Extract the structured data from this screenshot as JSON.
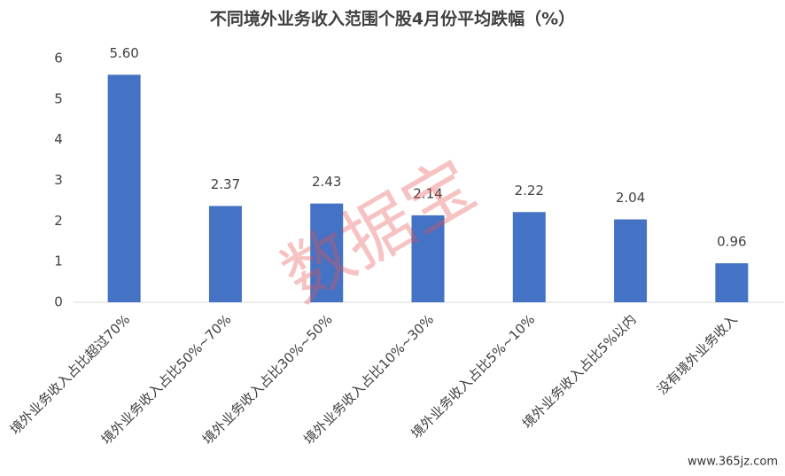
{
  "chart_data": {
    "type": "bar",
    "title": "不同境外业务收入范围个股4月份平均跌幅（%）",
    "categories": [
      "境外业务收入占比超过70%",
      "境外业务收入占比50%~70%",
      "境外业务收入占比30%~50%",
      "境外业务收入占比10%~30%",
      "境外业务收入占比5%~10%",
      "境外业务收入占比5%以内",
      "没有境外业务收入"
    ],
    "values": [
      5.6,
      2.37,
      2.43,
      2.14,
      2.22,
      2.04,
      0.96
    ],
    "value_labels": [
      "5.60",
      "2.37",
      "2.43",
      "2.14",
      "2.22",
      "2.04",
      "0.96"
    ],
    "color": "#4472c4",
    "ylim": [
      0,
      6
    ],
    "yticks": [
      0,
      1,
      2,
      3,
      4,
      5,
      6
    ],
    "grid": false,
    "watermark": "数据宝",
    "source": "www.365jz.com"
  }
}
